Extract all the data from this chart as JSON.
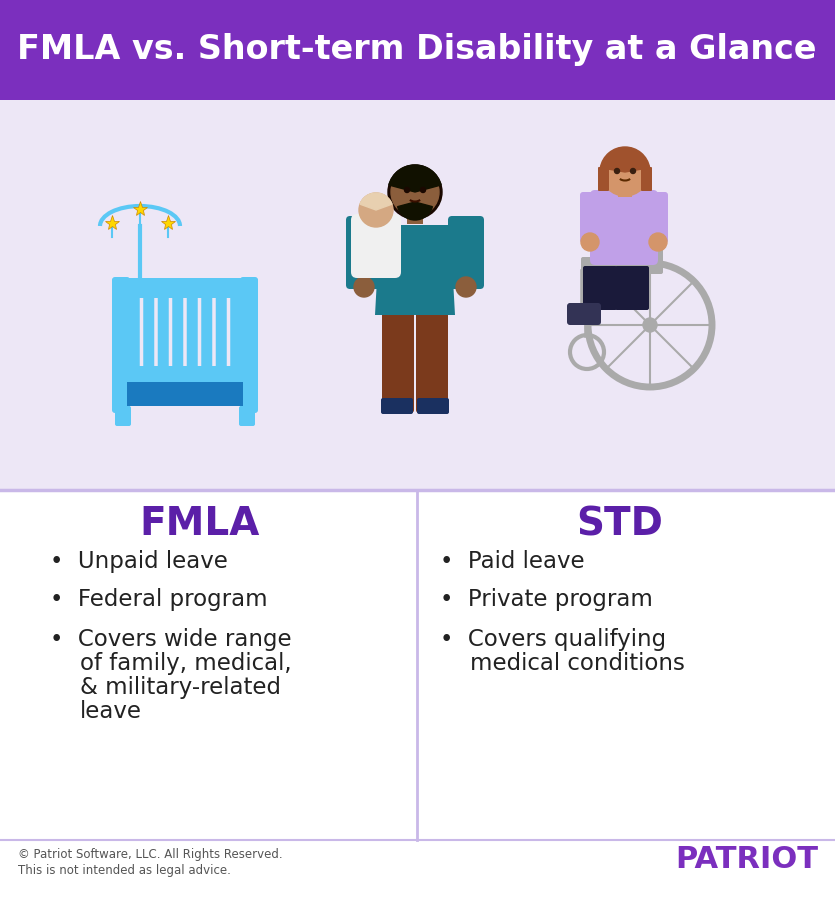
{
  "title": "FMLA vs. Short-term Disability at a Glance",
  "title_bg_color": "#7B2FBE",
  "title_text_color": "#FFFFFF",
  "image_bg_color": "#EDE7F6",
  "bottom_bg_color": "#FFFFFF",
  "divider_color": "#C9B8E8",
  "purple_dark": "#5B1FA8",
  "purple_medium": "#7B2FBE",
  "fmla_heading": "FMLA",
  "std_heading": "STD",
  "heading_color": "#5B1FA8",
  "bullet_color": "#222222",
  "fmla_bullets": [
    "Unpaid leave",
    "Federal program",
    "Covers wide range\nof family, medical,\n& military-related\nleave"
  ],
  "std_bullets": [
    "Paid leave",
    "Private program",
    "Covers qualifying\nmedical conditions"
  ],
  "footer_left_1": "© Patriot Software, LLC. All Rights Reserved.",
  "footer_left_2": "This is not intended as legal advice.",
  "footer_brand": "PATRIOT",
  "footer_brand_color": "#7B2FBE",
  "footer_text_color": "#555555",
  "crib_color": "#5BC8F5",
  "crib_dark_color": "#1A7ABF",
  "star_color": "#FFD700",
  "father_shirt_color": "#1B7A8C",
  "father_pants_color": "#7B3A1C",
  "baby_color": "#EFEFEF",
  "wheelchair_color": "#AAAAAA",
  "person_shirt_color": "#C0A0E8",
  "person_pants_color": "#1A1A3A",
  "person_skin_color": "#D4956A",
  "father_skin_color": "#8B5E3C"
}
